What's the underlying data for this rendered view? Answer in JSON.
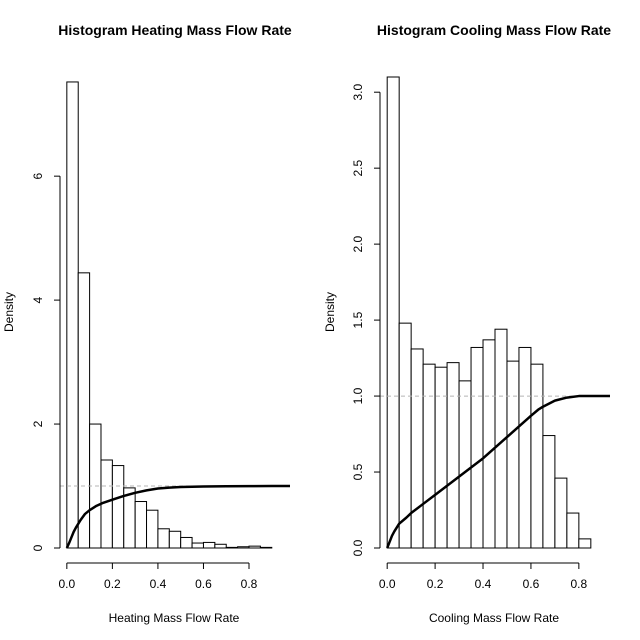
{
  "chart_data": [
    {
      "type": "bar",
      "title": "Histogram Heating Mass Flow Rate",
      "xlabel": "Heating Mass Flow Rate",
      "ylabel": "Density",
      "bin_width": 0.05,
      "bins_start": 0.0,
      "values": [
        7.52,
        4.44,
        2.0,
        1.42,
        1.33,
        0.97,
        0.75,
        0.61,
        0.31,
        0.27,
        0.17,
        0.08,
        0.09,
        0.06,
        0.01,
        0.02,
        0.03,
        0.01,
        0.0
      ],
      "xlim": [
        -0.03,
        0.98
      ],
      "ylim": [
        0,
        7.6
      ],
      "xticks": [
        0.0,
        0.2,
        0.4,
        0.6,
        0.8
      ],
      "xtick_labels": [
        "0.0",
        "0.2",
        "0.4",
        "0.6",
        "0.8"
      ],
      "yticks": [
        0,
        2,
        4,
        6
      ],
      "ytick_labels": [
        "0",
        "2",
        "4",
        "6"
      ],
      "reference_line_y": 1.0,
      "ecdf": {
        "x": [
          0.0,
          0.01,
          0.02,
          0.03,
          0.04,
          0.06,
          0.08,
          0.1,
          0.13,
          0.16,
          0.2,
          0.25,
          0.3,
          0.35,
          0.4,
          0.45,
          0.5,
          0.6,
          0.7,
          0.8,
          0.9,
          0.98
        ],
        "y": [
          0.0,
          0.08,
          0.17,
          0.26,
          0.33,
          0.45,
          0.55,
          0.61,
          0.68,
          0.73,
          0.78,
          0.84,
          0.89,
          0.93,
          0.96,
          0.975,
          0.985,
          0.992,
          0.996,
          0.999,
          1.0,
          1.0
        ]
      }
    },
    {
      "type": "bar",
      "title": "Histogram Cooling Mass Flow Rate",
      "xlabel": "Cooling Mass Flow Rate",
      "ylabel": "Density",
      "bin_width": 0.05,
      "bins_start": 0.0,
      "values": [
        3.1,
        1.48,
        1.31,
        1.21,
        1.19,
        1.22,
        1.1,
        1.32,
        1.37,
        1.44,
        1.23,
        1.32,
        1.21,
        0.74,
        0.46,
        0.23,
        0.06,
        0.0
      ],
      "xlim": [
        -0.03,
        0.93
      ],
      "ylim": [
        0,
        3.1
      ],
      "xticks": [
        0.0,
        0.2,
        0.4,
        0.6,
        0.8
      ],
      "xtick_labels": [
        "0.0",
        "0.2",
        "0.4",
        "0.6",
        "0.8"
      ],
      "yticks": [
        0.0,
        0.5,
        1.0,
        1.5,
        2.0,
        2.5,
        3.0
      ],
      "ytick_labels": [
        "0.0",
        "0.5",
        "1.0",
        "1.5",
        "2.0",
        "2.5",
        "3.0"
      ],
      "reference_line_y": 1.0,
      "ecdf": {
        "x": [
          0.0,
          0.01,
          0.02,
          0.03,
          0.05,
          0.08,
          0.1,
          0.15,
          0.2,
          0.25,
          0.3,
          0.35,
          0.4,
          0.45,
          0.5,
          0.55,
          0.6,
          0.63,
          0.65,
          0.7,
          0.75,
          0.8,
          0.83,
          0.85,
          0.9,
          0.93
        ],
        "y": [
          0.0,
          0.04,
          0.08,
          0.11,
          0.16,
          0.2,
          0.23,
          0.29,
          0.35,
          0.41,
          0.47,
          0.53,
          0.59,
          0.66,
          0.73,
          0.8,
          0.87,
          0.91,
          0.93,
          0.97,
          0.99,
          1.0,
          1.0,
          1.0,
          1.0,
          1.0
        ]
      }
    }
  ]
}
